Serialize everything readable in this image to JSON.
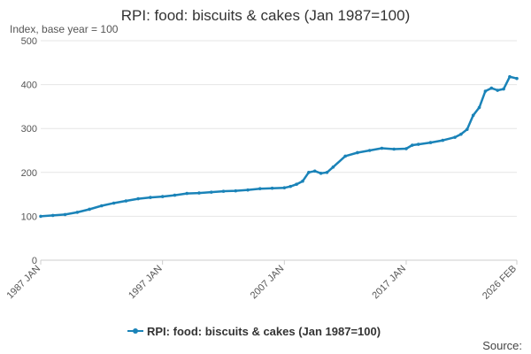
{
  "header": {
    "title": "RPI: food: biscuits & cakes (Jan 1987=100)",
    "subtitle": "Index, base year = 100"
  },
  "footer": {
    "source_label": "Source:"
  },
  "colors": {
    "series": "#1a83b8",
    "grid": "#e6e6e6",
    "text": "#333333"
  },
  "chart_data": {
    "type": "line",
    "title": "RPI: food: biscuits & cakes (Jan 1987=100)",
    "ylabel": "Index, base year = 100",
    "xlabel": "",
    "ylim": [
      0,
      500
    ],
    "yticks": [
      0,
      100,
      200,
      300,
      400,
      500
    ],
    "xlim": [
      "1987-01",
      "2026-02"
    ],
    "xtick_labels": [
      {
        "date": "1987-01",
        "label": "1987 JAN"
      },
      {
        "date": "1997-01",
        "label": "1997 JAN"
      },
      {
        "date": "2007-01",
        "label": "2007 JAN"
      },
      {
        "date": "2017-01",
        "label": "2017 JAN"
      },
      {
        "date": "2026-02",
        "label": "2026 FEB"
      }
    ],
    "grid": "horizontal",
    "legend_placement": "bottom",
    "series": [
      {
        "name": "RPI: food: biscuits & cakes (Jan 1987=100)",
        "x": [
          "1987-01",
          "1988-01",
          "1989-01",
          "1990-01",
          "1991-01",
          "1992-01",
          "1993-01",
          "1994-01",
          "1995-01",
          "1996-01",
          "1997-01",
          "1998-01",
          "1999-01",
          "2000-01",
          "2001-01",
          "2002-01",
          "2003-01",
          "2004-01",
          "2005-01",
          "2006-01",
          "2007-01",
          "2007-07",
          "2008-01",
          "2008-07",
          "2009-01",
          "2009-07",
          "2010-01",
          "2010-07",
          "2011-01",
          "2012-01",
          "2013-01",
          "2014-01",
          "2015-01",
          "2016-01",
          "2017-01",
          "2017-07",
          "2018-01",
          "2019-01",
          "2020-01",
          "2021-01",
          "2021-07",
          "2022-01",
          "2022-07",
          "2023-01",
          "2023-07",
          "2024-01",
          "2024-07",
          "2025-01",
          "2025-07",
          "2026-02"
        ],
        "y": [
          100,
          102,
          104,
          109,
          116,
          124,
          130,
          135,
          140,
          143,
          145,
          148,
          152,
          153,
          155,
          157,
          158,
          160,
          163,
          164,
          165,
          168,
          173,
          180,
          200,
          203,
          198,
          200,
          212,
          237,
          245,
          250,
          255,
          253,
          254,
          262,
          264,
          268,
          273,
          280,
          287,
          298,
          330,
          348,
          385,
          392,
          387,
          390,
          418,
          414
        ]
      }
    ]
  }
}
